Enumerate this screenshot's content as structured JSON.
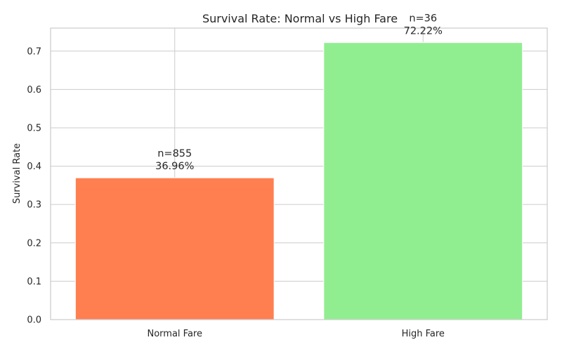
{
  "chart_data": {
    "type": "bar",
    "title": "Survival Rate: Normal vs High Fare",
    "xlabel": "",
    "ylabel": "Survival Rate",
    "categories": [
      "Normal Fare",
      "High Fare"
    ],
    "values": [
      0.3696,
      0.7222
    ],
    "counts": [
      "n=855",
      "n=36"
    ],
    "value_labels": [
      "36.96%",
      "72.22%"
    ],
    "colors": [
      "#ff7f50",
      "#90ee90"
    ],
    "ylim": [
      0,
      0.76
    ],
    "yticks": [
      0.0,
      0.1,
      0.2,
      0.3,
      0.4,
      0.5,
      0.6,
      0.7
    ],
    "ytick_labels": [
      "0.0",
      "0.1",
      "0.2",
      "0.3",
      "0.4",
      "0.5",
      "0.6",
      "0.7"
    ],
    "grid": true,
    "grid_color": "#cccccc",
    "axes_edge_color": "#cccccc"
  }
}
